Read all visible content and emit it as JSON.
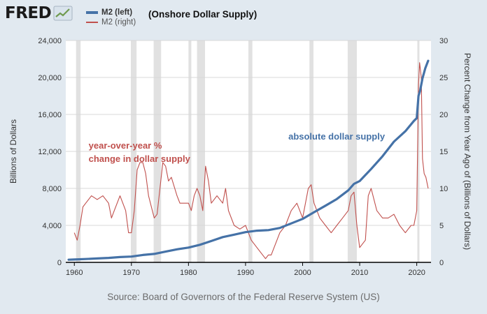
{
  "brand": {
    "name": "FRED",
    "icon": "fred-line-chart-icon"
  },
  "legend": [
    {
      "label": "M2 (left)",
      "color": "#4572a7"
    },
    {
      "label": "M2 (right)",
      "color": "#c0504d"
    }
  ],
  "title_note": "(Onshore Dollar Supply)",
  "source": "Source: Board of Governors of the Federal Reserve System (US)",
  "chart_data": {
    "type": "line",
    "xlabel": "",
    "ylabel": "Billions of Dollars",
    "y2label": "Percent Change from Year Ago of (Billions of Dollars)",
    "xlim": [
      1958.5,
      2022.5
    ],
    "ylim": [
      0,
      24000
    ],
    "y2lim": [
      0,
      30
    ],
    "xticks": [
      1960,
      1970,
      1980,
      1990,
      2000,
      2010,
      2020
    ],
    "yticks": [
      0,
      4000,
      8000,
      12000,
      16000,
      20000,
      24000
    ],
    "ytick_labels": [
      "0",
      "4,000",
      "8,000",
      "12,000",
      "16,000",
      "20,000",
      "24,000"
    ],
    "y2ticks": [
      0,
      5,
      10,
      15,
      20,
      25,
      30
    ],
    "grid": "horizontal",
    "recessions": [
      [
        1960.3,
        1961.1
      ],
      [
        1969.9,
        1970.9
      ],
      [
        1973.9,
        1975.2
      ],
      [
        1980.0,
        1980.5
      ],
      [
        1981.5,
        1982.9
      ],
      [
        1990.5,
        1991.2
      ],
      [
        2001.2,
        2001.9
      ],
      [
        2007.9,
        2009.5
      ],
      [
        2020.1,
        2020.4
      ]
    ],
    "series": [
      {
        "name": "M2 (left)",
        "axis": "left",
        "color": "#4572a7",
        "x": [
          1959,
          1960,
          1962,
          1964,
          1966,
          1968,
          1970,
          1972,
          1974,
          1976,
          1978,
          1980,
          1982,
          1984,
          1986,
          1988,
          1990,
          1992,
          1994,
          1996,
          1998,
          2000,
          2002,
          2004,
          2006,
          2008,
          2009,
          2010,
          2012,
          2014,
          2016,
          2018,
          2019.5,
          2020,
          2020.3,
          2020.6,
          2021,
          2021.5,
          2022
        ],
        "y": [
          290,
          310,
          360,
          420,
          480,
          570,
          630,
          800,
          910,
          1160,
          1410,
          1600,
          1900,
          2310,
          2730,
          3000,
          3270,
          3430,
          3490,
          3720,
          4210,
          4700,
          5430,
          6130,
          6850,
          7790,
          8490,
          8790,
          10100,
          11480,
          13060,
          14180,
          15300,
          15600,
          18000,
          18600,
          19900,
          21000,
          21800
        ]
      },
      {
        "name": "M2 (right)",
        "axis": "right",
        "color": "#c0504d",
        "x": [
          1960,
          1960.5,
          1961,
          1961.5,
          1962,
          1963,
          1964,
          1965,
          1966,
          1966.5,
          1967,
          1968,
          1969,
          1969.5,
          1970,
          1970.5,
          1971,
          1971.5,
          1972,
          1972.5,
          1973,
          1974,
          1974.5,
          1975,
          1975.5,
          1976,
          1976.5,
          1977,
          1978,
          1978.5,
          1979,
          1980,
          1980.5,
          1981,
          1981.5,
          1982,
          1982.5,
          1983,
          1983.5,
          1984,
          1985,
          1986,
          1986.5,
          1987,
          1988,
          1989,
          1990,
          1990.5,
          1991,
          1992,
          1993,
          1993.5,
          1994,
          1994.5,
          1995,
          1996,
          1997,
          1998,
          1999,
          2000,
          2001,
          2001.5,
          2002,
          2003,
          2004,
          2005,
          2006,
          2007,
          2008,
          2008.5,
          2009,
          2009.5,
          2010,
          2011,
          2011.5,
          2012,
          2013,
          2014,
          2015,
          2016,
          2017,
          2018,
          2019,
          2019.5,
          2020,
          2020.3,
          2020.5,
          2020.8,
          2021,
          2021.3,
          2021.6,
          2022
        ],
        "y": [
          4,
          3,
          5,
          7.5,
          8,
          9,
          8.5,
          9,
          8,
          6,
          7,
          9,
          7,
          4,
          4,
          7,
          12.5,
          13.5,
          13.5,
          12,
          9,
          6,
          6.5,
          10,
          13.5,
          13,
          11,
          11.5,
          9,
          8,
          8,
          8,
          7,
          9,
          10,
          9,
          7,
          13,
          11,
          8,
          9,
          8,
          10,
          7,
          5,
          4.5,
          5,
          4,
          3,
          2,
          1,
          0.5,
          1,
          1,
          2,
          4,
          5,
          7,
          8,
          6,
          10,
          10.5,
          8,
          6,
          5,
          4,
          5,
          6,
          7,
          9,
          9.5,
          5,
          2,
          3,
          9,
          10,
          7,
          6,
          6,
          6.5,
          5,
          4,
          5,
          5,
          7,
          24,
          27,
          25,
          14,
          12,
          11.5,
          10
        ]
      }
    ],
    "annotations": [
      {
        "text": "year-over-year %",
        "color": "#c0504d",
        "x": 1962.5,
        "y": 15.4,
        "axis": "right"
      },
      {
        "text": "change in dollar supply",
        "color": "#c0504d",
        "x": 1962.5,
        "y": 13.6,
        "axis": "right"
      },
      {
        "text": "absolute dollar supply",
        "color": "#4572a7",
        "x": 1997.5,
        "y": 13300,
        "axis": "left"
      }
    ]
  }
}
